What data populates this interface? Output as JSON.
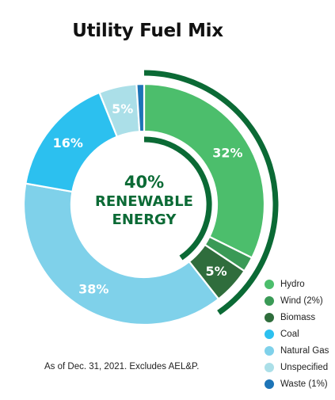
{
  "chart_data": {
    "type": "pie",
    "title": "Utility Fuel Mix",
    "center_text": [
      "40%",
      "RENEWABLE",
      "ENERGY"
    ],
    "slices": [
      {
        "name": "Hydro",
        "value": 32,
        "label": "32%",
        "color": "#4cbe6c"
      },
      {
        "name": "Wind (2%)",
        "value": 2,
        "label": "",
        "color": "#3a9a56"
      },
      {
        "name": "Biomass",
        "value": 5,
        "label": "5%",
        "color": "#2f6d3c"
      },
      {
        "name": "Natural Gas",
        "value": 38,
        "label": "38%",
        "color": "#7fd1ea"
      },
      {
        "name": "Coal",
        "value": 16,
        "label": "16%",
        "color": "#2cc0ef"
      },
      {
        "name": "Unspecified",
        "value": 5,
        "label": "5%",
        "color": "#abdfe8"
      },
      {
        "name": "Waste (1%)",
        "value": 1,
        "label": "",
        "color": "#1d74b7"
      }
    ],
    "renewable_bracket": {
      "value": 40,
      "color": "#0b6a35"
    },
    "legend": [
      {
        "label": "Hydro",
        "color": "#4cbe6c"
      },
      {
        "label": "Wind (2%)",
        "color": "#3a9a56"
      },
      {
        "label": "Biomass",
        "color": "#2f6d3c"
      },
      {
        "label": "Coal",
        "color": "#2cc0ef"
      },
      {
        "label": "Natural Gas",
        "color": "#7fd1ea"
      },
      {
        "label": "Unspecified",
        "color": "#abdfe8"
      },
      {
        "label": "Waste (1%)",
        "color": "#1d74b7"
      }
    ],
    "legend_position": "bottom-right",
    "footnote": "As of Dec. 31, 2021. Excludes AEL&P."
  }
}
